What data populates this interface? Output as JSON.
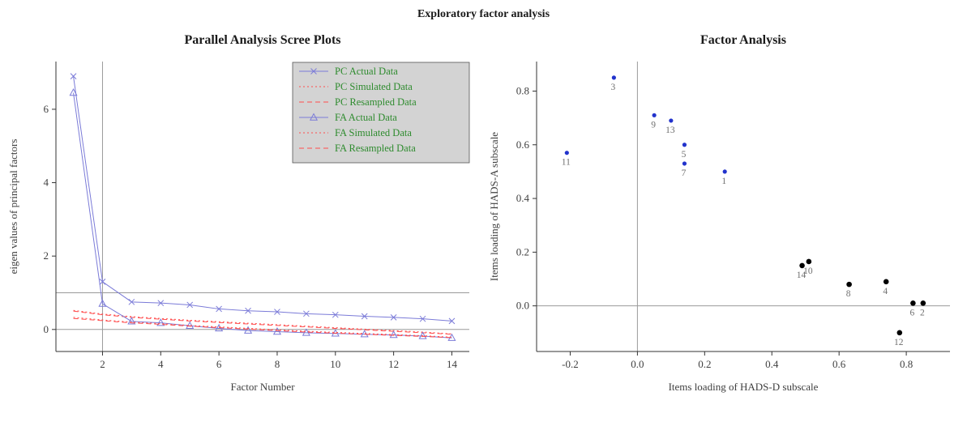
{
  "page_title": "Exploratory factor analysis",
  "colors": {
    "actual_blue": "#7b7bd8",
    "simres_red": "#ff4d4d",
    "scatter_blue": "#2233cc",
    "scatter_black": "#000000",
    "legend_bg": "#d3d3d3",
    "legend_text": "#2e8b2e",
    "grid_gray": "#9a9a9a",
    "axis_text": "#3f3f3f"
  },
  "chart_data": [
    {
      "type": "line",
      "title": "Parallel Analysis Scree Plots",
      "xlabel": "Factor Number",
      "ylabel": "eigen values of principal factors",
      "xlim": [
        0.4,
        14.6
      ],
      "ylim": [
        -0.6,
        7.3
      ],
      "xticks": [
        2,
        4,
        6,
        8,
        10,
        12,
        14
      ],
      "xtick_labels": [
        "2",
        "4",
        "6",
        "8",
        "10",
        "12",
        "14"
      ],
      "yticks": [
        0,
        2,
        4,
        6
      ],
      "ytick_labels": [
        "0",
        "2",
        "4",
        "6"
      ],
      "hlines": [
        0,
        1
      ],
      "vlines": [
        2
      ],
      "legend_position": "top-right",
      "x": [
        1,
        2,
        3,
        4,
        5,
        6,
        7,
        8,
        9,
        10,
        11,
        12,
        13,
        14
      ],
      "series": [
        {
          "name": "PC  Actual Data",
          "color": "#7b7bd8",
          "dash": "solid",
          "marker": "x",
          "values": [
            6.9,
            1.3,
            0.75,
            0.72,
            0.67,
            0.56,
            0.51,
            0.48,
            0.43,
            0.4,
            0.36,
            0.33,
            0.29,
            0.23
          ]
        },
        {
          "name": "PC  Simulated Data",
          "color": "#ff4d4d",
          "dash": "dotted",
          "marker": null,
          "values": [
            0.52,
            0.42,
            0.35,
            0.3,
            0.25,
            0.21,
            0.17,
            0.13,
            0.09,
            0.05,
            0.01,
            -0.03,
            -0.07,
            -0.12
          ]
        },
        {
          "name": "PC  Resampled Data",
          "color": "#ff4d4d",
          "dash": "dashed",
          "marker": null,
          "values": [
            0.5,
            0.4,
            0.33,
            0.28,
            0.23,
            0.19,
            0.15,
            0.11,
            0.07,
            0.03,
            -0.01,
            -0.05,
            -0.09,
            -0.13
          ]
        },
        {
          "name": "FA  Actual Data",
          "color": "#7b7bd8",
          "dash": "solid",
          "marker": "triangle",
          "values": [
            6.45,
            0.7,
            0.22,
            0.18,
            0.1,
            0.03,
            -0.03,
            -0.06,
            -0.09,
            -0.11,
            -0.13,
            -0.15,
            -0.18,
            -0.23
          ]
        },
        {
          "name": "FA  Simulated Data",
          "color": "#ff4d4d",
          "dash": "dotted",
          "marker": null,
          "values": [
            0.33,
            0.26,
            0.2,
            0.16,
            0.11,
            0.07,
            0.03,
            -0.01,
            -0.05,
            -0.08,
            -0.11,
            -0.14,
            -0.17,
            -0.21
          ]
        },
        {
          "name": "FA  Resampled Data",
          "color": "#ff4d4d",
          "dash": "dashed",
          "marker": null,
          "values": [
            0.3,
            0.24,
            0.18,
            0.14,
            0.09,
            0.05,
            0.01,
            -0.03,
            -0.07,
            -0.1,
            -0.13,
            -0.16,
            -0.19,
            -0.22
          ]
        }
      ]
    },
    {
      "type": "scatter",
      "title": "Factor Analysis",
      "xlabel": "Items loading of HADS-D subscale",
      "ylabel": "Items loading of HADS-A subscale",
      "xlim": [
        -0.3,
        0.93
      ],
      "ylim": [
        -0.17,
        0.91
      ],
      "xticks": [
        -0.2,
        0.0,
        0.2,
        0.4,
        0.6,
        0.8
      ],
      "xtick_labels": [
        "-0.2",
        "0.0",
        "0.2",
        "0.4",
        "0.6",
        "0.8"
      ],
      "yticks": [
        0.0,
        0.2,
        0.4,
        0.6,
        0.8
      ],
      "ytick_labels": [
        "0.0",
        "0.2",
        "0.4",
        "0.6",
        "0.8"
      ],
      "hlines": [
        0
      ],
      "vlines": [
        0
      ],
      "points": [
        {
          "label": "1",
          "x": 0.26,
          "y": 0.5,
          "color": "blue"
        },
        {
          "label": "2",
          "x": 0.85,
          "y": 0.01,
          "color": "black"
        },
        {
          "label": "3",
          "x": -0.07,
          "y": 0.85,
          "color": "blue"
        },
        {
          "label": "4",
          "x": 0.74,
          "y": 0.09,
          "color": "black"
        },
        {
          "label": "5",
          "x": 0.14,
          "y": 0.6,
          "color": "blue"
        },
        {
          "label": "6",
          "x": 0.82,
          "y": 0.01,
          "color": "black"
        },
        {
          "label": "7",
          "x": 0.14,
          "y": 0.53,
          "color": "blue"
        },
        {
          "label": "8",
          "x": 0.63,
          "y": 0.08,
          "color": "black"
        },
        {
          "label": "9",
          "x": 0.05,
          "y": 0.71,
          "color": "blue"
        },
        {
          "label": "10",
          "x": 0.51,
          "y": 0.165,
          "color": "black"
        },
        {
          "label": "11",
          "x": -0.21,
          "y": 0.57,
          "color": "blue"
        },
        {
          "label": "12",
          "x": 0.78,
          "y": -0.1,
          "color": "black"
        },
        {
          "label": "13",
          "x": 0.1,
          "y": 0.69,
          "color": "blue"
        },
        {
          "label": "14",
          "x": 0.49,
          "y": 0.15,
          "color": "black"
        }
      ]
    }
  ]
}
